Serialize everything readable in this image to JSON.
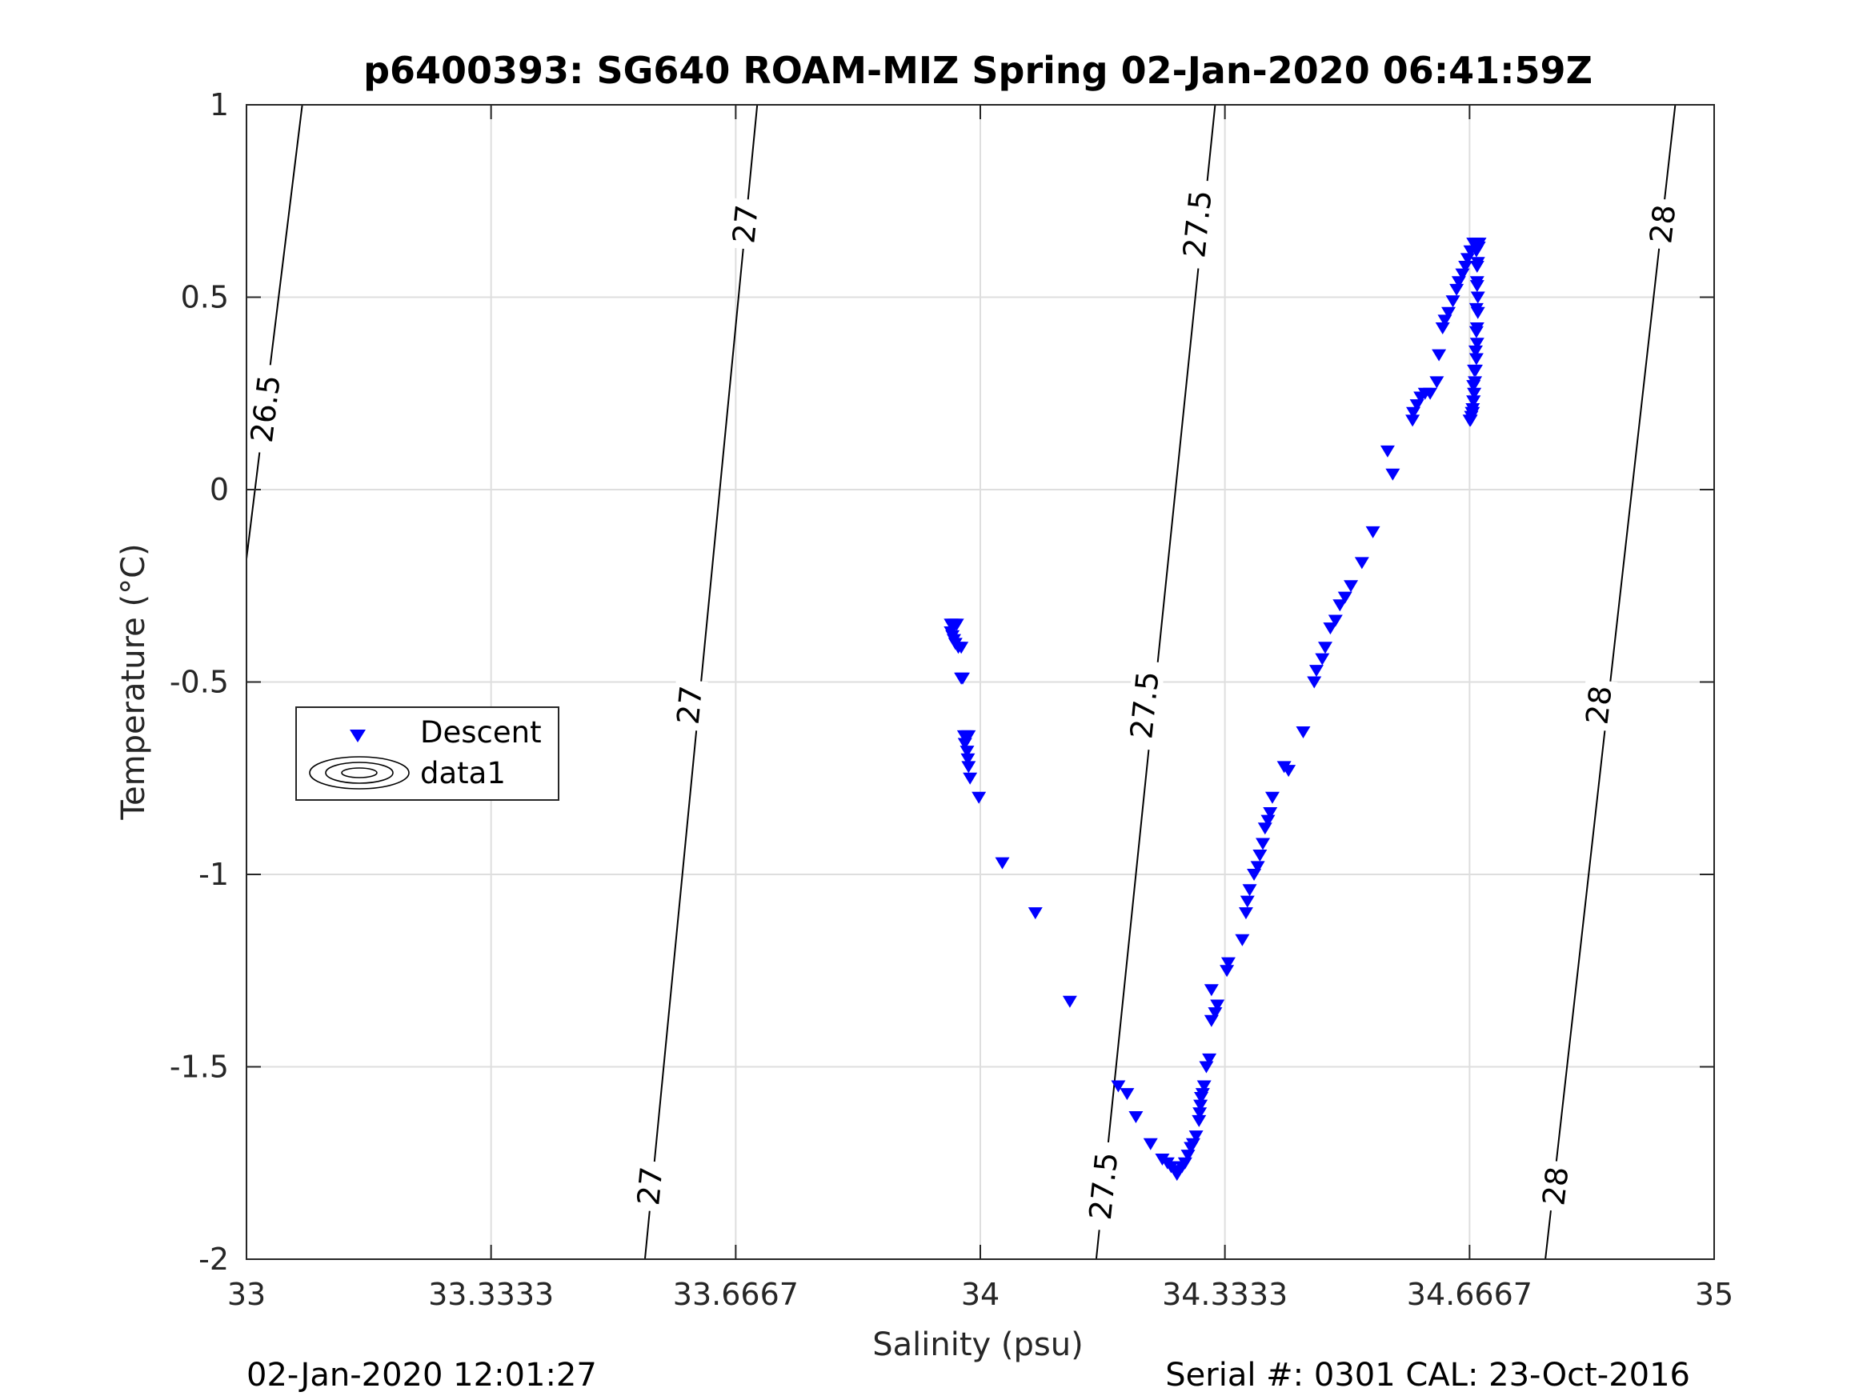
{
  "title": "p6400393: SG640 ROAM-MIZ Spring 02-Jan-2020 06:41:59Z",
  "footer": {
    "left": "02-Jan-2020 12:01:27",
    "right": "Serial #: 0301  CAL: 23-Oct-2016"
  },
  "colors": {
    "descent": "#0000ff",
    "contour": "#000000",
    "grid": "#dedede",
    "axis": "#262626"
  },
  "chart_data": {
    "type": "scatter",
    "title": "p6400393: SG640 ROAM-MIZ Spring 02-Jan-2020 06:41:59Z",
    "xlabel": "Salinity (psu)",
    "ylabel": "Temperature (°C)",
    "xlim": [
      33,
      35
    ],
    "ylim": [
      -2,
      1
    ],
    "xticks": [
      33,
      33.3333,
      33.6667,
      34,
      34.3333,
      34.6667,
      35
    ],
    "xtick_labels": [
      "33",
      "33.3333",
      "33.6667",
      "34",
      "34.3333",
      "34.6667",
      "35"
    ],
    "yticks": [
      -2,
      -1.5,
      -1,
      -0.5,
      0,
      0.5,
      1
    ],
    "ytick_labels": [
      "-2",
      "-1.5",
      "-1",
      "-0.5",
      "0",
      "0.5",
      "1"
    ],
    "grid": true,
    "legend": {
      "placement": "left-middle",
      "entries": [
        "Descent",
        "data1"
      ]
    },
    "series": [
      {
        "name": "Descent",
        "marker": "downward-triangle",
        "color": "#0000ff",
        "points": [
          [
            33.96,
            -0.35
          ],
          [
            33.962,
            -0.35
          ],
          [
            33.965,
            -0.35
          ],
          [
            33.968,
            -0.35
          ],
          [
            33.96,
            -0.37
          ],
          [
            33.962,
            -0.38
          ],
          [
            33.964,
            -0.39
          ],
          [
            33.966,
            -0.4
          ],
          [
            33.97,
            -0.41
          ],
          [
            33.974,
            -0.41
          ],
          [
            33.974,
            -0.49
          ],
          [
            33.976,
            -0.49
          ],
          [
            33.978,
            -0.64
          ],
          [
            33.981,
            -0.64
          ],
          [
            33.984,
            -0.64
          ],
          [
            33.979,
            -0.66
          ],
          [
            33.982,
            -0.68
          ],
          [
            33.983,
            -0.7
          ],
          [
            33.984,
            -0.72
          ],
          [
            33.986,
            -0.75
          ],
          [
            33.998,
            -0.8
          ],
          [
            34.03,
            -0.97
          ],
          [
            34.075,
            -1.1
          ],
          [
            34.122,
            -1.33
          ],
          [
            34.188,
            -1.55
          ],
          [
            34.2,
            -1.57
          ],
          [
            34.212,
            -1.63
          ],
          [
            34.232,
            -1.7
          ],
          [
            34.248,
            -1.74
          ],
          [
            34.255,
            -1.75
          ],
          [
            34.26,
            -1.76
          ],
          [
            34.265,
            -1.77
          ],
          [
            34.268,
            -1.78
          ],
          [
            34.271,
            -1.77
          ],
          [
            34.275,
            -1.76
          ],
          [
            34.279,
            -1.75
          ],
          [
            34.283,
            -1.73
          ],
          [
            34.287,
            -1.71
          ],
          [
            34.29,
            -1.7
          ],
          [
            34.294,
            -1.68
          ],
          [
            34.298,
            -1.64
          ],
          [
            34.299,
            -1.62
          ],
          [
            34.3,
            -1.6
          ],
          [
            34.301,
            -1.58
          ],
          [
            34.303,
            -1.57
          ],
          [
            34.305,
            -1.55
          ],
          [
            34.308,
            -1.5
          ],
          [
            34.312,
            -1.48
          ],
          [
            34.315,
            -1.38
          ],
          [
            34.32,
            -1.36
          ],
          [
            34.323,
            -1.34
          ],
          [
            34.315,
            -1.3
          ],
          [
            34.336,
            -1.25
          ],
          [
            34.338,
            -1.23
          ],
          [
            34.357,
            -1.17
          ],
          [
            34.362,
            -1.1
          ],
          [
            34.364,
            -1.07
          ],
          [
            34.367,
            -1.04
          ],
          [
            34.373,
            -1.0
          ],
          [
            34.378,
            -0.98
          ],
          [
            34.381,
            -0.95
          ],
          [
            34.385,
            -0.92
          ],
          [
            34.388,
            -0.88
          ],
          [
            34.392,
            -0.86
          ],
          [
            34.395,
            -0.84
          ],
          [
            34.398,
            -0.8
          ],
          [
            34.414,
            -0.72
          ],
          [
            34.42,
            -0.73
          ],
          [
            34.44,
            -0.63
          ],
          [
            34.455,
            -0.5
          ],
          [
            34.458,
            -0.47
          ],
          [
            34.466,
            -0.44
          ],
          [
            34.47,
            -0.41
          ],
          [
            34.477,
            -0.36
          ],
          [
            34.484,
            -0.34
          ],
          [
            34.49,
            -0.3
          ],
          [
            34.497,
            -0.28
          ],
          [
            34.505,
            -0.25
          ],
          [
            34.52,
            -0.19
          ],
          [
            34.535,
            -0.11
          ],
          [
            34.555,
            0.1
          ],
          [
            34.562,
            0.04
          ],
          [
            34.589,
            0.18
          ],
          [
            34.59,
            0.2
          ],
          [
            34.595,
            0.22
          ],
          [
            34.6,
            0.24
          ],
          [
            34.606,
            0.25
          ],
          [
            34.613,
            0.25
          ],
          [
            34.622,
            0.28
          ],
          [
            34.625,
            0.35
          ],
          [
            34.63,
            0.42
          ],
          [
            34.633,
            0.44
          ],
          [
            34.638,
            0.46
          ],
          [
            34.644,
            0.49
          ],
          [
            34.649,
            0.52
          ],
          [
            34.652,
            0.54
          ],
          [
            34.657,
            0.56
          ],
          [
            34.661,
            0.58
          ],
          [
            34.664,
            0.6
          ],
          [
            34.668,
            0.62
          ],
          [
            34.672,
            0.64
          ],
          [
            34.676,
            0.64
          ],
          [
            34.68,
            0.64
          ],
          [
            34.676,
            0.62
          ],
          [
            34.677,
            0.58
          ],
          [
            34.677,
            0.54
          ],
          [
            34.678,
            0.5
          ],
          [
            34.678,
            0.46
          ],
          [
            34.677,
            0.42
          ],
          [
            34.677,
            0.38
          ],
          [
            34.676,
            0.34
          ],
          [
            34.675,
            0.31
          ],
          [
            34.674,
            0.28
          ],
          [
            34.673,
            0.25
          ],
          [
            34.672,
            0.23
          ],
          [
            34.671,
            0.21
          ],
          [
            34.67,
            0.2
          ],
          [
            34.669,
            0.19
          ],
          [
            34.668,
            0.18
          ],
          [
            34.667,
            0.18
          ],
          [
            34.671,
            0.2
          ],
          [
            34.672,
            0.23
          ],
          [
            34.672,
            0.27
          ],
          [
            34.673,
            0.31
          ],
          [
            34.675,
            0.36
          ],
          [
            34.676,
            0.41
          ],
          [
            34.676,
            0.47
          ],
          [
            34.677,
            0.53
          ],
          [
            34.678,
            0.59
          ],
          [
            34.679,
            0.63
          ]
        ]
      }
    ],
    "contours": {
      "name": "data1",
      "levels": [
        26.5,
        27,
        27.5,
        28
      ],
      "lines": [
        {
          "level": 26.5,
          "from": [
            33.0,
            -0.18
          ],
          "to": [
            33.076,
            1.0
          ]
        },
        {
          "level": 27,
          "from": [
            33.543,
            -2.0
          ],
          "to": [
            33.696,
            1.0
          ]
        },
        {
          "level": 27.5,
          "from": [
            34.158,
            -2.0
          ],
          "to": [
            34.32,
            1.0
          ]
        },
        {
          "level": 28,
          "from": [
            34.77,
            -2.0
          ],
          "to": [
            34.947,
            1.0
          ]
        }
      ],
      "labels": [
        {
          "text": "26.5",
          "at": [
            33.026,
            0.21
          ]
        },
        {
          "text": "27",
          "at": [
            33.55,
            -1.81
          ]
        },
        {
          "text": "27",
          "at": [
            33.604,
            -0.56
          ]
        },
        {
          "text": "27",
          "at": [
            33.68,
            0.69
          ]
        },
        {
          "text": "27.5",
          "at": [
            34.168,
            -1.81
          ]
        },
        {
          "text": "27.5",
          "at": [
            34.224,
            -0.56
          ]
        },
        {
          "text": "27.5",
          "at": [
            34.296,
            0.69
          ]
        },
        {
          "text": "28",
          "at": [
            34.784,
            -1.81
          ]
        },
        {
          "text": "28",
          "at": [
            34.843,
            -0.56
          ]
        },
        {
          "text": "28",
          "at": [
            34.93,
            0.69
          ]
        }
      ]
    }
  }
}
